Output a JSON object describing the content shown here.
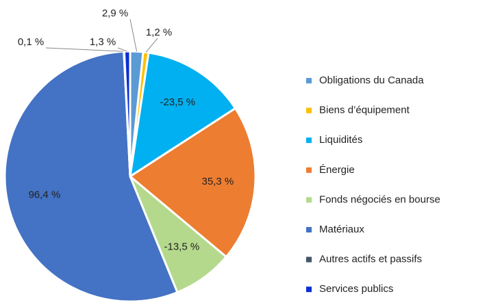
{
  "chart_data": {
    "type": "pie",
    "categories": [
      "Obligations du Canada",
      "Biens d’équipement",
      "Liquidités",
      "Énergie",
      "Fonds négociés en bourse",
      "Matériaux",
      "Autres actifs et passifs",
      "Services publics"
    ],
    "values": [
      2.9,
      1.2,
      -23.5,
      35.3,
      -13.5,
      96.4,
      0.1,
      1.3
    ],
    "value_labels": [
      "2,9 %",
      "1,2 %",
      "-23,5 %",
      "35,3 %",
      "-13,5 %",
      "96,4 %",
      "0,1 %",
      "1,3 %"
    ],
    "colors": [
      "#5b9bd5",
      "#ffc000",
      "#00b0f0",
      "#ed7d31",
      "#b4d98c",
      "#4472c4",
      "#44546a",
      "#0a2fd6"
    ],
    "legend": "right"
  }
}
